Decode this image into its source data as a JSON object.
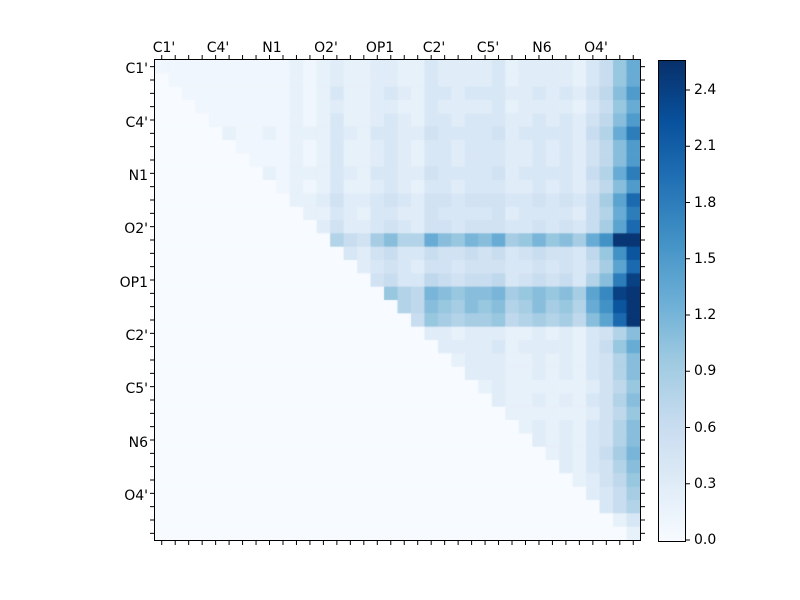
{
  "figure": {
    "background": "#ffffff"
  },
  "chart_data": {
    "type": "heatmap",
    "title": "",
    "xlabel": "",
    "ylabel": "",
    "grid_size": 36,
    "colormap": "Blues",
    "vmin": 0.0,
    "vmax": 2.56,
    "legend_position": "right-colorbar",
    "x_axis_labels": [
      "C1'",
      "C4'",
      "N1",
      "O2'",
      "OP1",
      "C2'",
      "C5'",
      "N6",
      "O4'"
    ],
    "y_axis_labels": [
      "C1'",
      "C4'",
      "N1",
      "O2'",
      "OP1",
      "C2'",
      "C5'",
      "N6",
      "O4'"
    ],
    "colorbar_ticks": [
      "0.0",
      "0.3",
      "0.6",
      "0.9",
      "1.2",
      "1.5",
      "1.8",
      "2.1",
      "2.4"
    ],
    "colormap_stops": [
      "#f7fbff",
      "#deebf7",
      "#c6dbef",
      "#9ecae1",
      "#6baed6",
      "#4292c6",
      "#2171b5",
      "#08519c",
      "#08306b"
    ],
    "matrix": [
      [
        0.1,
        0.1,
        0.1,
        0.1,
        0.1,
        0.1,
        0.1,
        0.1,
        0.1,
        0.1,
        0.2,
        0.1,
        0.2,
        0.3,
        0.2,
        0.2,
        0.3,
        0.3,
        0.2,
        0.2,
        0.4,
        0.3,
        0.3,
        0.3,
        0.3,
        0.4,
        0.2,
        0.3,
        0.3,
        0.3,
        0.3,
        0.2,
        0.4,
        0.6,
        1.0,
        1.3
      ],
      [
        0,
        0.1,
        0.1,
        0.1,
        0.1,
        0.1,
        0.1,
        0.1,
        0.1,
        0.1,
        0.2,
        0.1,
        0.2,
        0.3,
        0.2,
        0.2,
        0.3,
        0.3,
        0.2,
        0.2,
        0.4,
        0.3,
        0.3,
        0.3,
        0.3,
        0.4,
        0.2,
        0.3,
        0.3,
        0.3,
        0.3,
        0.2,
        0.4,
        0.6,
        1.0,
        1.3
      ],
      [
        0,
        0,
        0.1,
        0.1,
        0.1,
        0.1,
        0.1,
        0.1,
        0.1,
        0.1,
        0.2,
        0.1,
        0.2,
        0.4,
        0.2,
        0.2,
        0.3,
        0.4,
        0.3,
        0.2,
        0.4,
        0.4,
        0.3,
        0.4,
        0.4,
        0.4,
        0.3,
        0.3,
        0.4,
        0.3,
        0.4,
        0.3,
        0.5,
        0.7,
        1.1,
        1.5
      ],
      [
        0,
        0,
        0,
        0.1,
        0.1,
        0.1,
        0.1,
        0.1,
        0.1,
        0.1,
        0.2,
        0.1,
        0.2,
        0.3,
        0.2,
        0.2,
        0.3,
        0.3,
        0.2,
        0.2,
        0.4,
        0.3,
        0.3,
        0.3,
        0.3,
        0.4,
        0.2,
        0.3,
        0.3,
        0.3,
        0.3,
        0.2,
        0.4,
        0.6,
        1.0,
        1.3
      ],
      [
        0,
        0,
        0,
        0,
        0.1,
        0.1,
        0.1,
        0.1,
        0.1,
        0.1,
        0.2,
        0.1,
        0.2,
        0.4,
        0.2,
        0.2,
        0.3,
        0.4,
        0.3,
        0.2,
        0.4,
        0.4,
        0.3,
        0.4,
        0.4,
        0.4,
        0.3,
        0.3,
        0.4,
        0.3,
        0.4,
        0.3,
        0.5,
        0.7,
        1.1,
        1.5
      ],
      [
        0,
        0,
        0,
        0,
        0,
        0.2,
        0.1,
        0.1,
        0.2,
        0.1,
        0.2,
        0.2,
        0.2,
        0.4,
        0.3,
        0.2,
        0.4,
        0.4,
        0.3,
        0.3,
        0.5,
        0.4,
        0.4,
        0.4,
        0.4,
        0.5,
        0.3,
        0.4,
        0.4,
        0.4,
        0.4,
        0.3,
        0.6,
        0.8,
        1.3,
        1.8
      ],
      [
        0,
        0,
        0,
        0,
        0,
        0,
        0.1,
        0.1,
        0.1,
        0.1,
        0.2,
        0.1,
        0.2,
        0.4,
        0.2,
        0.2,
        0.3,
        0.4,
        0.3,
        0.2,
        0.4,
        0.4,
        0.3,
        0.4,
        0.4,
        0.4,
        0.3,
        0.3,
        0.4,
        0.3,
        0.4,
        0.3,
        0.5,
        0.7,
        1.1,
        1.5
      ],
      [
        0,
        0,
        0,
        0,
        0,
        0,
        0,
        0.1,
        0.1,
        0.1,
        0.2,
        0.1,
        0.2,
        0.4,
        0.2,
        0.2,
        0.3,
        0.4,
        0.3,
        0.2,
        0.4,
        0.4,
        0.3,
        0.4,
        0.4,
        0.4,
        0.3,
        0.3,
        0.4,
        0.3,
        0.4,
        0.3,
        0.5,
        0.7,
        1.1,
        1.5
      ],
      [
        0,
        0,
        0,
        0,
        0,
        0,
        0,
        0,
        0.2,
        0.1,
        0.2,
        0.2,
        0.2,
        0.4,
        0.3,
        0.2,
        0.4,
        0.4,
        0.3,
        0.3,
        0.5,
        0.4,
        0.4,
        0.4,
        0.4,
        0.5,
        0.3,
        0.4,
        0.4,
        0.4,
        0.4,
        0.3,
        0.6,
        0.8,
        1.3,
        1.8
      ],
      [
        0,
        0,
        0,
        0,
        0,
        0,
        0,
        0,
        0,
        0.1,
        0.2,
        0.1,
        0.2,
        0.4,
        0.2,
        0.2,
        0.3,
        0.4,
        0.3,
        0.2,
        0.4,
        0.4,
        0.3,
        0.4,
        0.4,
        0.4,
        0.3,
        0.3,
        0.4,
        0.3,
        0.4,
        0.3,
        0.5,
        0.7,
        1.1,
        1.5
      ],
      [
        0,
        0,
        0,
        0,
        0,
        0,
        0,
        0,
        0,
        0,
        0.2,
        0.2,
        0.3,
        0.5,
        0.3,
        0.3,
        0.4,
        0.5,
        0.4,
        0.3,
        0.5,
        0.5,
        0.4,
        0.5,
        0.5,
        0.5,
        0.4,
        0.4,
        0.5,
        0.4,
        0.5,
        0.4,
        0.6,
        0.9,
        1.4,
        2.0
      ],
      [
        0,
        0,
        0,
        0,
        0,
        0,
        0,
        0,
        0,
        0,
        0,
        0.2,
        0.2,
        0.4,
        0.3,
        0.2,
        0.4,
        0.4,
        0.3,
        0.3,
        0.5,
        0.4,
        0.4,
        0.4,
        0.4,
        0.5,
        0.3,
        0.4,
        0.4,
        0.4,
        0.4,
        0.3,
        0.6,
        0.8,
        1.3,
        1.8
      ],
      [
        0,
        0,
        0,
        0,
        0,
        0,
        0,
        0,
        0,
        0,
        0,
        0,
        0.3,
        0.5,
        0.3,
        0.3,
        0.4,
        0.5,
        0.4,
        0.3,
        0.5,
        0.5,
        0.4,
        0.5,
        0.5,
        0.5,
        0.4,
        0.4,
        0.5,
        0.4,
        0.5,
        0.4,
        0.6,
        0.9,
        1.4,
        2.0
      ],
      [
        0,
        0,
        0,
        0,
        0,
        0,
        0,
        0,
        0,
        0,
        0,
        0,
        0,
        0.8,
        0.6,
        0.5,
        0.9,
        1.1,
        0.8,
        0.8,
        1.3,
        1.1,
        1.0,
        1.2,
        1.1,
        1.3,
        0.9,
        1.0,
        1.2,
        1.0,
        1.1,
        0.9,
        1.3,
        1.6,
        2.5,
        2.5
      ],
      [
        0,
        0,
        0,
        0,
        0,
        0,
        0,
        0,
        0,
        0,
        0,
        0,
        0,
        0,
        0.4,
        0.3,
        0.5,
        0.6,
        0.4,
        0.4,
        0.6,
        0.5,
        0.5,
        0.6,
        0.5,
        0.6,
        0.4,
        0.5,
        0.6,
        0.5,
        0.5,
        0.4,
        0.7,
        1.0,
        1.6,
        2.2
      ],
      [
        0,
        0,
        0,
        0,
        0,
        0,
        0,
        0,
        0,
        0,
        0,
        0,
        0,
        0,
        0,
        0.3,
        0.4,
        0.5,
        0.4,
        0.3,
        0.5,
        0.5,
        0.4,
        0.5,
        0.5,
        0.5,
        0.4,
        0.4,
        0.5,
        0.4,
        0.5,
        0.4,
        0.6,
        0.9,
        1.4,
        2.0
      ],
      [
        0,
        0,
        0,
        0,
        0,
        0,
        0,
        0,
        0,
        0,
        0,
        0,
        0,
        0,
        0,
        0,
        0.5,
        0.6,
        0.4,
        0.4,
        0.7,
        0.6,
        0.5,
        0.6,
        0.6,
        0.7,
        0.4,
        0.5,
        0.6,
        0.5,
        0.6,
        0.4,
        0.8,
        1.1,
        1.8,
        2.4
      ],
      [
        0,
        0,
        0,
        0,
        0,
        0,
        0,
        0,
        0,
        0,
        0,
        0,
        0,
        0,
        0,
        0,
        0,
        1.0,
        0.8,
        0.7,
        1.2,
        1.1,
        1.0,
        1.1,
        1.1,
        1.2,
        0.9,
        1.0,
        1.1,
        1.0,
        1.1,
        0.9,
        1.4,
        1.7,
        2.4,
        2.5
      ],
      [
        0,
        0,
        0,
        0,
        0,
        0,
        0,
        0,
        0,
        0,
        0,
        0,
        0,
        0,
        0,
        0,
        0,
        0,
        0.8,
        0.7,
        1.1,
        1.0,
        0.9,
        1.1,
        1.0,
        1.1,
        0.8,
        0.9,
        1.1,
        0.9,
        1.0,
        0.8,
        1.3,
        1.6,
        2.2,
        2.5
      ],
      [
        0,
        0,
        0,
        0,
        0,
        0,
        0,
        0,
        0,
        0,
        0,
        0,
        0,
        0,
        0,
        0,
        0,
        0,
        0,
        0.6,
        1.0,
        0.9,
        0.8,
        0.9,
        0.9,
        1.0,
        0.7,
        0.8,
        0.9,
        0.8,
        0.9,
        0.7,
        1.1,
        1.4,
        2.0,
        2.5
      ],
      [
        0,
        0,
        0,
        0,
        0,
        0,
        0,
        0,
        0,
        0,
        0,
        0,
        0,
        0,
        0,
        0,
        0,
        0,
        0,
        0,
        0.3,
        0.3,
        0.2,
        0.3,
        0.3,
        0.3,
        0.2,
        0.2,
        0.3,
        0.2,
        0.3,
        0.2,
        0.4,
        0.5,
        0.8,
        1.1
      ],
      [
        0,
        0,
        0,
        0,
        0,
        0,
        0,
        0,
        0,
        0,
        0,
        0,
        0,
        0,
        0,
        0,
        0,
        0,
        0,
        0,
        0,
        0.3,
        0.3,
        0.3,
        0.3,
        0.4,
        0.2,
        0.3,
        0.3,
        0.3,
        0.3,
        0.2,
        0.4,
        0.6,
        1.0,
        1.3
      ],
      [
        0,
        0,
        0,
        0,
        0,
        0,
        0,
        0,
        0,
        0,
        0,
        0,
        0,
        0,
        0,
        0,
        0,
        0,
        0,
        0,
        0,
        0,
        0.2,
        0.3,
        0.3,
        0.3,
        0.2,
        0.2,
        0.3,
        0.2,
        0.3,
        0.2,
        0.4,
        0.5,
        0.8,
        1.1
      ],
      [
        0,
        0,
        0,
        0,
        0,
        0,
        0,
        0,
        0,
        0,
        0,
        0,
        0,
        0,
        0,
        0,
        0,
        0,
        0,
        0,
        0,
        0,
        0,
        0.3,
        0.3,
        0.3,
        0.2,
        0.2,
        0.3,
        0.2,
        0.3,
        0.2,
        0.4,
        0.5,
        0.8,
        1.1
      ],
      [
        0,
        0,
        0,
        0,
        0,
        0,
        0,
        0,
        0,
        0,
        0,
        0,
        0,
        0,
        0,
        0,
        0,
        0,
        0,
        0,
        0,
        0,
        0,
        0,
        0.2,
        0.3,
        0.2,
        0.2,
        0.2,
        0.2,
        0.2,
        0.2,
        0.3,
        0.5,
        0.7,
        1.0
      ],
      [
        0,
        0,
        0,
        0,
        0,
        0,
        0,
        0,
        0,
        0,
        0,
        0,
        0,
        0,
        0,
        0,
        0,
        0,
        0,
        0,
        0,
        0,
        0,
        0,
        0,
        0.3,
        0.2,
        0.2,
        0.3,
        0.2,
        0.3,
        0.2,
        0.4,
        0.5,
        0.8,
        1.1
      ],
      [
        0,
        0,
        0,
        0,
        0,
        0,
        0,
        0,
        0,
        0,
        0,
        0,
        0,
        0,
        0,
        0,
        0,
        0,
        0,
        0,
        0,
        0,
        0,
        0,
        0,
        0,
        0.2,
        0.2,
        0.2,
        0.2,
        0.2,
        0.2,
        0.3,
        0.5,
        0.7,
        1.0
      ],
      [
        0,
        0,
        0,
        0,
        0,
        0,
        0,
        0,
        0,
        0,
        0,
        0,
        0,
        0,
        0,
        0,
        0,
        0,
        0,
        0,
        0,
        0,
        0,
        0,
        0,
        0,
        0,
        0.2,
        0.3,
        0.2,
        0.3,
        0.2,
        0.4,
        0.5,
        0.8,
        1.1
      ],
      [
        0,
        0,
        0,
        0,
        0,
        0,
        0,
        0,
        0,
        0,
        0,
        0,
        0,
        0,
        0,
        0,
        0,
        0,
        0,
        0,
        0,
        0,
        0,
        0,
        0,
        0,
        0,
        0,
        0.3,
        0.2,
        0.3,
        0.2,
        0.4,
        0.5,
        0.8,
        1.1
      ],
      [
        0,
        0,
        0,
        0,
        0,
        0,
        0,
        0,
        0,
        0,
        0,
        0,
        0,
        0,
        0,
        0,
        0,
        0,
        0,
        0,
        0,
        0,
        0,
        0,
        0,
        0,
        0,
        0,
        0,
        0.2,
        0.3,
        0.2,
        0.4,
        0.6,
        0.9,
        1.2
      ],
      [
        0,
        0,
        0,
        0,
        0,
        0,
        0,
        0,
        0,
        0,
        0,
        0,
        0,
        0,
        0,
        0,
        0,
        0,
        0,
        0,
        0,
        0,
        0,
        0,
        0,
        0,
        0,
        0,
        0,
        0,
        0.3,
        0.2,
        0.4,
        0.5,
        0.8,
        1.1
      ],
      [
        0,
        0,
        0,
        0,
        0,
        0,
        0,
        0,
        0,
        0,
        0,
        0,
        0,
        0,
        0,
        0,
        0,
        0,
        0,
        0,
        0,
        0,
        0,
        0,
        0,
        0,
        0,
        0,
        0,
        0,
        0,
        0.2,
        0.3,
        0.5,
        0.7,
        1.0
      ],
      [
        0,
        0,
        0,
        0,
        0,
        0,
        0,
        0,
        0,
        0,
        0,
        0,
        0,
        0,
        0,
        0,
        0,
        0,
        0,
        0,
        0,
        0,
        0,
        0,
        0,
        0,
        0,
        0,
        0,
        0,
        0,
        0,
        0.3,
        0.4,
        0.6,
        0.9
      ],
      [
        0,
        0,
        0,
        0,
        0,
        0,
        0,
        0,
        0,
        0,
        0,
        0,
        0,
        0,
        0,
        0,
        0,
        0,
        0,
        0,
        0,
        0,
        0,
        0,
        0,
        0,
        0,
        0,
        0,
        0,
        0,
        0,
        0,
        0.4,
        0.6,
        0.8
      ],
      [
        0,
        0,
        0,
        0,
        0,
        0,
        0,
        0,
        0,
        0,
        0,
        0,
        0,
        0,
        0,
        0,
        0,
        0,
        0,
        0,
        0,
        0,
        0,
        0,
        0,
        0,
        0,
        0,
        0,
        0,
        0,
        0,
        0,
        0,
        0.2,
        0.4
      ],
      [
        0,
        0,
        0,
        0,
        0,
        0,
        0,
        0,
        0,
        0,
        0,
        0,
        0,
        0,
        0,
        0,
        0,
        0,
        0,
        0,
        0,
        0,
        0,
        0,
        0,
        0,
        0,
        0,
        0,
        0,
        0,
        0,
        0,
        0,
        0,
        0.2
      ]
    ]
  }
}
